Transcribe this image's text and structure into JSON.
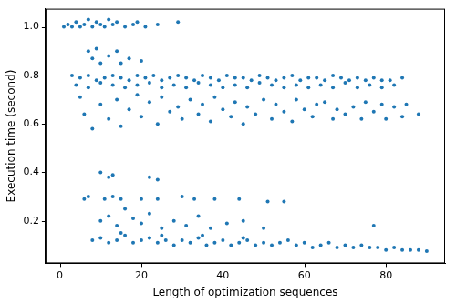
{
  "chart_data": {
    "type": "scatter",
    "x_label": "Length of optimization sequences",
    "y_label": "Execution time (second)",
    "color": "#1f77b4",
    "marker": "circle",
    "grid": false,
    "xlim": [
      -3.5,
      94.5
    ],
    "ylim": [
      0.025,
      1.075
    ],
    "xticks": [
      0,
      20,
      40,
      60,
      80
    ],
    "yticks": [
      0.2,
      0.4,
      0.6,
      0.8,
      {
        "value": 1,
        "label": "1.0"
      }
    ],
    "x": [
      1,
      2,
      3,
      4,
      5,
      6,
      7,
      8,
      9,
      10,
      11,
      12,
      13,
      14,
      16,
      18,
      19,
      21,
      24,
      29,
      7,
      8,
      9,
      10,
      12,
      14,
      15,
      17,
      20,
      3,
      5,
      7,
      9,
      11,
      13,
      15,
      17,
      19,
      21,
      23,
      25,
      27,
      29,
      31,
      33,
      35,
      37,
      39,
      41,
      43,
      45,
      47,
      49,
      51,
      53,
      55,
      57,
      59,
      61,
      63,
      65,
      67,
      69,
      71,
      73,
      75,
      77,
      79,
      81,
      84,
      4,
      7,
      10,
      13,
      16,
      19,
      22,
      25,
      28,
      31,
      34,
      37,
      40,
      43,
      46,
      49,
      52,
      55,
      58,
      61,
      64,
      67,
      70,
      73,
      76,
      79,
      82,
      5,
      6,
      8,
      10,
      12,
      14,
      15,
      17,
      19,
      20,
      22,
      24,
      25,
      27,
      29,
      30,
      32,
      34,
      35,
      37,
      38,
      40,
      42,
      43,
      45,
      46,
      48,
      50,
      52,
      53,
      55,
      57,
      58,
      60,
      62,
      63,
      65,
      67,
      68,
      70,
      72,
      74,
      75,
      77,
      79,
      80,
      82,
      84,
      85,
      88,
      10,
      12,
      13,
      22,
      24,
      6,
      7,
      11,
      13,
      15,
      20,
      24,
      30,
      33,
      38,
      44,
      51,
      55,
      10,
      12,
      14,
      16,
      18,
      20,
      22,
      25,
      28,
      31,
      34,
      37,
      41,
      45,
      50,
      77,
      8,
      10,
      12,
      14,
      16,
      18,
      20,
      22,
      24,
      26,
      28,
      30,
      32,
      34,
      36,
      38,
      40,
      42,
      44,
      46,
      48,
      50,
      52,
      54,
      56,
      58,
      60,
      62,
      64,
      66,
      68,
      70,
      72,
      74,
      76,
      78,
      80,
      82,
      84,
      86,
      88,
      90,
      15,
      25,
      35,
      45
    ],
    "values": [
      1.0,
      1.01,
      1.0,
      1.02,
      1.0,
      1.01,
      1.03,
      1.0,
      1.02,
      1.01,
      1.0,
      1.03,
      1.01,
      1.02,
      1.0,
      1.01,
      1.02,
      1.0,
      1.01,
      1.02,
      0.9,
      0.87,
      0.91,
      0.85,
      0.88,
      0.9,
      0.85,
      0.87,
      0.86,
      0.8,
      0.79,
      0.8,
      0.78,
      0.79,
      0.8,
      0.79,
      0.78,
      0.8,
      0.79,
      0.8,
      0.78,
      0.79,
      0.8,
      0.79,
      0.78,
      0.8,
      0.79,
      0.78,
      0.8,
      0.79,
      0.79,
      0.78,
      0.8,
      0.79,
      0.78,
      0.79,
      0.8,
      0.78,
      0.79,
      0.79,
      0.78,
      0.8,
      0.79,
      0.78,
      0.79,
      0.78,
      0.79,
      0.78,
      0.78,
      0.79,
      0.76,
      0.75,
      0.77,
      0.76,
      0.75,
      0.76,
      0.77,
      0.75,
      0.76,
      0.75,
      0.77,
      0.76,
      0.75,
      0.76,
      0.75,
      0.77,
      0.76,
      0.75,
      0.76,
      0.75,
      0.76,
      0.75,
      0.77,
      0.75,
      0.76,
      0.75,
      0.76,
      0.71,
      0.64,
      0.58,
      0.68,
      0.62,
      0.7,
      0.59,
      0.66,
      0.72,
      0.63,
      0.69,
      0.6,
      0.71,
      0.65,
      0.67,
      0.62,
      0.7,
      0.64,
      0.68,
      0.61,
      0.71,
      0.66,
      0.63,
      0.69,
      0.6,
      0.67,
      0.64,
      0.7,
      0.62,
      0.68,
      0.65,
      0.61,
      0.7,
      0.66,
      0.63,
      0.68,
      0.69,
      0.62,
      0.66,
      0.64,
      0.67,
      0.62,
      0.69,
      0.65,
      0.68,
      0.62,
      0.67,
      0.63,
      0.68,
      0.64,
      0.4,
      0.38,
      0.39,
      0.38,
      0.37,
      0.29,
      0.3,
      0.29,
      0.3,
      0.29,
      0.29,
      0.29,
      0.3,
      0.29,
      0.29,
      0.29,
      0.28,
      0.28,
      0.2,
      0.22,
      0.18,
      0.25,
      0.21,
      0.19,
      0.23,
      0.17,
      0.2,
      0.18,
      0.22,
      0.17,
      0.19,
      0.2,
      0.17,
      0.18,
      0.12,
      0.13,
      0.11,
      0.12,
      0.14,
      0.11,
      0.12,
      0.13,
      0.11,
      0.12,
      0.1,
      0.12,
      0.11,
      0.13,
      0.1,
      0.11,
      0.12,
      0.1,
      0.11,
      0.12,
      0.1,
      0.11,
      0.1,
      0.11,
      0.12,
      0.1,
      0.11,
      0.09,
      0.1,
      0.11,
      0.09,
      0.1,
      0.09,
      0.1,
      0.09,
      0.09,
      0.08,
      0.09,
      0.08,
      0.08,
      0.08,
      0.075,
      0.15,
      0.14,
      0.14,
      0.13
    ]
  }
}
